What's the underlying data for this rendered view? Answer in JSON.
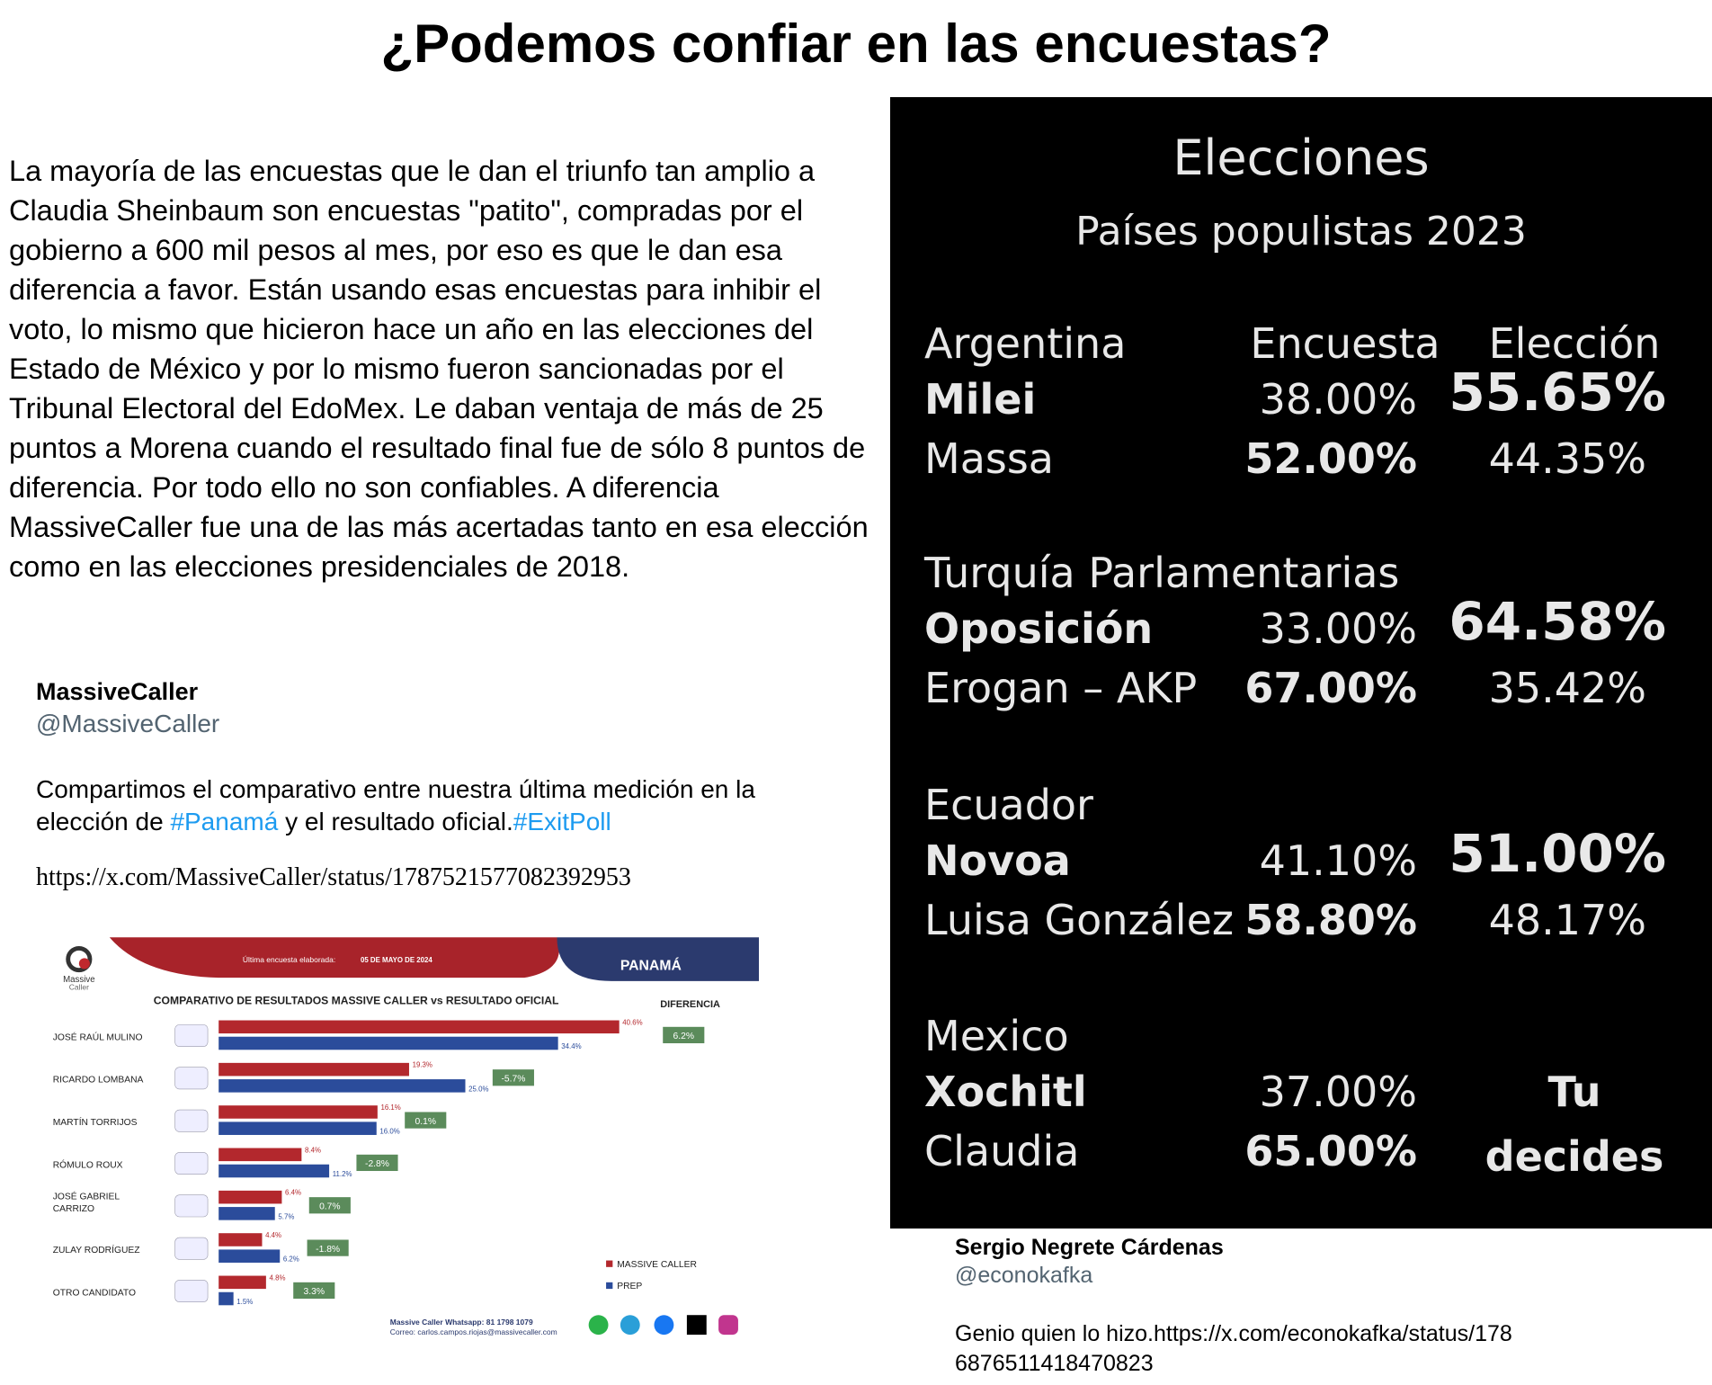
{
  "title": "¿Podemos confiar en las encuestas?",
  "paragraph": "La mayoría de las encuestas que le dan el triunfo tan amplio a Claudia Sheinbaum son encuestas \"patito\", compradas por el gobierno a 600 mil pesos al mes, por eso es que le dan esa diferencia a favor. Están usando esas encuestas para inhibir el voto, lo mismo que hicieron hace un año en las elecciones del Estado de México y por lo mismo fueron sancionadas por el Tribunal Electoral del EdoMex. Le daban ventaja de más de 25 puntos a Morena cuando el resultado final fue de sólo 8 puntos de diferencia. Por todo ello no son confiables. A diferencia MassiveCaller fue una de las más acertadas tanto en esa elección como en las elecciones presidenciales de 2018.",
  "tweet1": {
    "name": "MassiveCaller",
    "handle": "@MassiveCaller",
    "text": [
      "Compartimos el comparativo entre nuestra última medición en la elección de ",
      "#Panamá",
      " y el resultado oficial.",
      "#ExitPoll"
    ],
    "url": "https://x.com/MassiveCaller/status/1787521577082392953"
  },
  "chart_data": {
    "type": "bar",
    "logo": [
      "Massive",
      "Caller"
    ],
    "banner_label": "Última encuesta elaborada:",
    "banner_date": "05 DE MAYO DE 2024",
    "country": "PANAMÁ",
    "title": "COMPARATIVO DE RESULTADOS MASSIVE CALLER vs RESULTADO OFICIAL",
    "categories": [
      "JOSÉ RAÚL MULINO",
      "RICARDO LOMBANA",
      "MARTÍN TORRIJOS",
      "RÓMULO ROUX",
      "JOSÉ GABRIEL CARRIZO",
      "ZULAY RODRÍGUEZ",
      "OTRO CANDIDATO"
    ],
    "series": [
      {
        "name": "MASSIVE CALLER",
        "color": "#b3282d",
        "values": [
          40.6,
          19.3,
          16.1,
          8.4,
          6.4,
          4.4,
          4.8
        ],
        "value_labels": [
          "40.6%",
          "19.3%",
          "16.1%",
          "8.4%",
          "6.4%",
          "4.4%",
          "4.8%"
        ]
      },
      {
        "name": "PREP",
        "color": "#2b4c9b",
        "values": [
          34.4,
          25,
          16,
          11.2,
          5.7,
          6.2,
          1.5
        ],
        "value_labels": [
          "34.4%",
          "25.0%",
          "16.0%",
          "11.2%",
          "5.7%",
          "6.2%",
          "1.5%"
        ]
      }
    ],
    "difference": {
      "title": "DIFERENCIA",
      "values": [
        6.2,
        -5.7,
        0.1,
        -2.8,
        0.7,
        -1.8,
        3.3
      ],
      "value_labels": [
        "6.2%",
        "-5.7%",
        "0.1%",
        "-2.8%",
        "0.7%",
        "-1.8%",
        "3.3%"
      ]
    },
    "footer": [
      "Massive Caller Whatsapp: 81 1798 1079",
      "Correo: carlos.campos.riojas@massivecaller.com"
    ]
  },
  "elections": {
    "title": "Elecciones",
    "subtitle": "Países populistas 2023",
    "columns": [
      "Encuesta",
      "Elección"
    ],
    "groups": [
      {
        "country": "Argentina",
        "color": "#c9d1f2",
        "rows": [
          {
            "name": "Milei",
            "encuesta": "38.00%",
            "eleccion": "55.65%"
          },
          {
            "name": "Massa",
            "encuesta": "52.00%",
            "eleccion": "44.35%"
          }
        ]
      },
      {
        "country": "Turquía Parlamentarias",
        "color": "#f2dcc4",
        "rows": [
          {
            "name": "Oposición",
            "encuesta": "33.00%",
            "eleccion": "64.58%"
          },
          {
            "name": "Erogan – AKP",
            "encuesta": "67.00%",
            "eleccion": "35.42%"
          }
        ]
      },
      {
        "country": "Ecuador",
        "color": "#f0e2a6",
        "rows": [
          {
            "name": "Novoa",
            "encuesta": "41.10%",
            "eleccion": "51.00%"
          },
          {
            "name": "Luisa González",
            "encuesta": "58.80%",
            "eleccion": "48.17%"
          }
        ]
      },
      {
        "country": "Mexico",
        "color": "#cfe3c8",
        "rows": [
          {
            "name": "Xochitl",
            "encuesta": "37.00%",
            "eleccion": "Tu"
          },
          {
            "name": "Claudia",
            "encuesta": "65.00%",
            "eleccion": "decides"
          }
        ]
      }
    ]
  },
  "tweet2": {
    "name": "Sergio Negrete Cárdenas",
    "handle": "@econokafka",
    "text": "Genio quien lo hizo.https://x.com/econokafka/status/1786876511418470823"
  }
}
